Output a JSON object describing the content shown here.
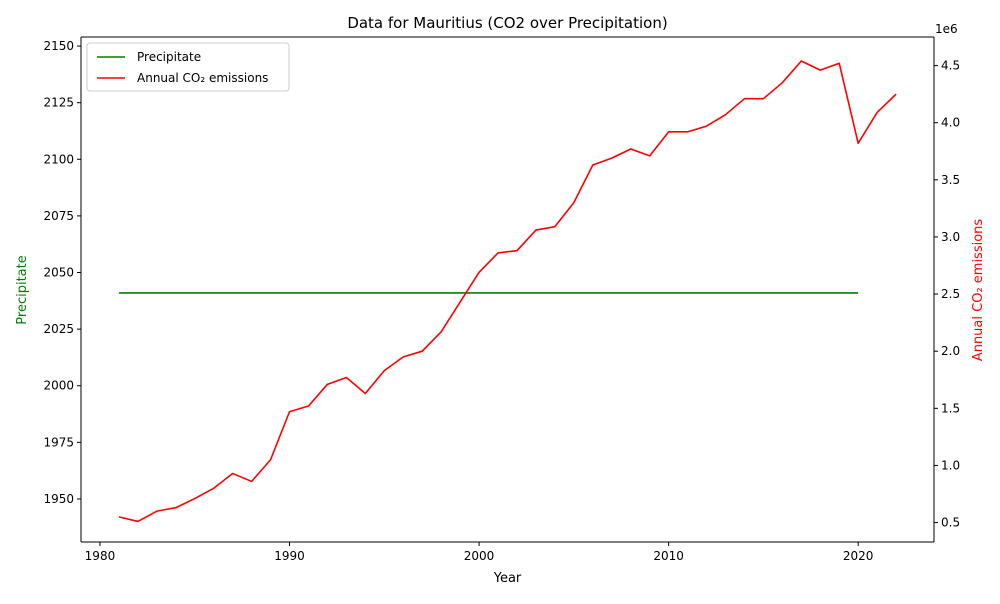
{
  "chart_data": {
    "type": "line",
    "title": "Data for Mauritius (CO2 over Precipitation)",
    "xlabel": "Year",
    "ylabel_left": "Precipitate",
    "ylabel_right": "Annual CO₂ emissions",
    "right_axis_offset_label": "1e6",
    "xlim": [
      1979,
      2024
    ],
    "ylim_left": [
      1931,
      2154
    ],
    "ylim_right": [
      0.33,
      4.75
    ],
    "x_ticks": [
      1980,
      1990,
      2000,
      2010,
      2020
    ],
    "y_ticks_left": [
      1950,
      1975,
      2000,
      2025,
      2050,
      2075,
      2100,
      2125,
      2150
    ],
    "y_ticks_right": [
      0.5,
      1.0,
      1.5,
      2.0,
      2.5,
      3.0,
      3.5,
      4.0,
      4.5
    ],
    "y_tick_labels_right": [
      "0.5",
      "1.0",
      "1.5",
      "2.0",
      "2.5",
      "3.0",
      "3.5",
      "4.0",
      "4.5"
    ],
    "legend_position": "upper-left",
    "colors": {
      "left": "#008000",
      "right": "#ff0000"
    },
    "series": [
      {
        "name": "Precipitate",
        "axis": "left",
        "color": "#008000",
        "x": [
          1981,
          2020
        ],
        "values": [
          2041,
          2041
        ]
      },
      {
        "name": "Annual CO₂ emissions",
        "axis": "right",
        "color": "#ff0000",
        "x": [
          1981,
          1982,
          1983,
          1984,
          1985,
          1986,
          1987,
          1988,
          1989,
          1990,
          1991,
          1992,
          1993,
          1994,
          1995,
          1996,
          1997,
          1998,
          1999,
          2000,
          2001,
          2002,
          2003,
          2004,
          2005,
          2006,
          2007,
          2008,
          2009,
          2010,
          2011,
          2012,
          2013,
          2014,
          2015,
          2016,
          2017,
          2018,
          2019,
          2020,
          2021,
          2022
        ],
        "values": [
          0.55,
          0.51,
          0.6,
          0.63,
          0.71,
          0.8,
          0.93,
          0.86,
          1.05,
          1.47,
          1.52,
          1.71,
          1.77,
          1.63,
          1.83,
          1.95,
          2.0,
          2.17,
          2.43,
          2.69,
          2.86,
          2.88,
          3.06,
          3.09,
          3.3,
          3.63,
          3.69,
          3.77,
          3.71,
          3.92,
          3.92,
          3.97,
          4.07,
          4.21,
          4.21,
          4.35,
          4.54,
          4.46,
          4.52,
          3.82,
          4.09,
          4.25
        ]
      }
    ]
  }
}
